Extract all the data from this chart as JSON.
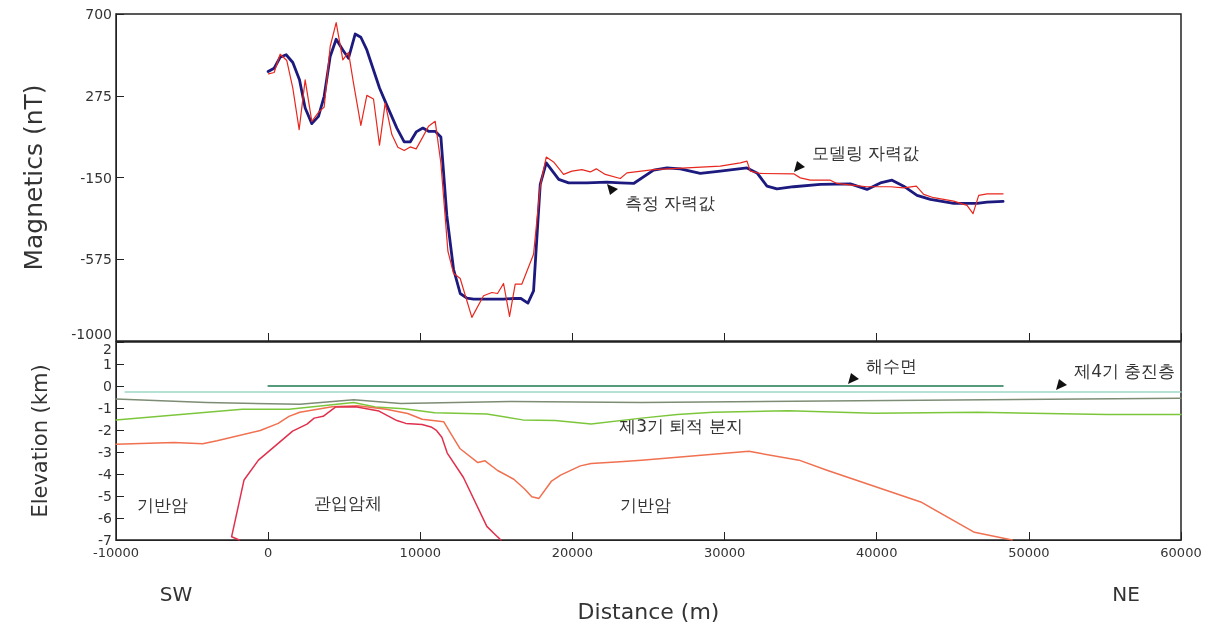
{
  "chart_data": [
    {
      "type": "line",
      "ylabel": "Magnetics (nT)",
      "xlim": [
        -10000,
        60000
      ],
      "xticks": [
        -10000,
        0,
        10000,
        20000,
        30000,
        40000,
        50000,
        60000
      ],
      "ylim": [
        -1000,
        700
      ],
      "yticks": [
        -1000,
        -575,
        -150,
        275,
        700
      ],
      "tick_labels": "y",
      "grid": false,
      "marker": "none",
      "line_style": "solid",
      "series": [
        {
          "color": "#1c1a7e",
          "x": [
            0,
            395,
            789,
            1184,
            1622,
            2060,
            2433,
            2871,
            3309,
            3682,
            4077,
            4471,
            4909,
            5282,
            5720,
            6093,
            6487,
            7320,
            7693,
            8460,
            8942,
            9337,
            9731,
            10169,
            10542,
            10980,
            11353,
            11748,
            12186,
            12624,
            13062,
            13500,
            14158,
            14815,
            15473,
            16131,
            16613,
            17073,
            17445,
            17884,
            18278,
            19100,
            19750,
            20953,
            22268,
            23144,
            24020,
            25335,
            26212,
            27089,
            28404,
            29719,
            31472,
            32130,
            32788,
            33445,
            34539,
            36294,
            38267,
            39363,
            40239,
            41006,
            41773,
            42650,
            43527,
            45060,
            46595,
            47252,
            48305
          ],
          "values": [
            401,
            418,
            475,
            488,
            448,
            358,
            211,
            130,
            168,
            272,
            479,
            569,
            513,
            470,
            596,
            579,
            513,
            315,
            246,
            107,
            35,
            35,
            87,
            107,
            90,
            90,
            61,
            -350,
            -627,
            -753,
            -777,
            -782,
            -782,
            -782,
            -782,
            -779,
            -779,
            -803,
            -739,
            -186,
            -74,
            -160,
            -178,
            -178,
            -174,
            -178,
            -181,
            -112,
            -100,
            -105,
            -129,
            -117,
            -100,
            -126,
            -195,
            -209,
            -198,
            -186,
            -183,
            -212,
            -178,
            -164,
            -195,
            -243,
            -264,
            -285,
            -285,
            -278,
            -274
          ]
        },
        {
          "color": "#e8281e",
          "x": [
            22,
            395,
            789,
            1227,
            1622,
            2038,
            2433,
            2871,
            3309,
            3682,
            4077,
            4471,
            4909,
            5282,
            5610,
            6093,
            6487,
            6925,
            7320,
            7693,
            8131,
            8526,
            8942,
            9337,
            9731,
            10169,
            10542,
            10980,
            11353,
            11813,
            12186,
            12624,
            13391,
            14158,
            14706,
            15079,
            15473,
            15867,
            16240,
            16679,
            17445,
            17884,
            18278,
            18760,
            19418,
            19966,
            20623,
            21171,
            21566,
            22158,
            23144,
            23582,
            25335,
            27527,
            29719,
            31034,
            31472,
            31692,
            32349,
            34540,
            34978,
            35636,
            36951,
            37389,
            38485,
            39362,
            40896,
            41773,
            42606,
            43088,
            43745,
            45060,
            45937,
            46331,
            46704,
            47252,
            48305
          ],
          "values": [
            389,
            396,
            491,
            458,
            315,
            99,
            358,
            142,
            189,
            216,
            531,
            655,
            462,
            500,
            341,
            121,
            277,
            258,
            18,
            237,
            73,
            7,
            -10,
            9,
            -1,
            61,
            116,
            142,
            -74,
            -532,
            -648,
            -675,
            -877,
            -765,
            -748,
            -753,
            -701,
            -872,
            -704,
            -704,
            -549,
            -195,
            -44,
            -69,
            -134,
            -117,
            -109,
            -121,
            -105,
            -134,
            -155,
            -126,
            -109,
            -100,
            -91,
            -74,
            -65,
            -117,
            -129,
            -131,
            -152,
            -164,
            -164,
            -181,
            -191,
            -198,
            -198,
            -204,
            -195,
            -238,
            -255,
            -273,
            -295,
            -338,
            -243,
            -235,
            -235
          ]
        }
      ],
      "annotations": [
        {
          "text": "측정 자력값",
          "x": 22268,
          "y": -174
        },
        {
          "text": "모델링 자력값",
          "x": 34540,
          "y": -131
        }
      ]
    },
    {
      "type": "line",
      "xlabel": "Distance (m)",
      "ylabel": "Elevation (km)",
      "xlim": [
        -10000,
        60000
      ],
      "xticks": [
        -10000,
        0,
        10000,
        20000,
        30000,
        40000,
        50000,
        60000
      ],
      "ylim": [
        -7,
        2
      ],
      "yticks": [
        -7,
        -6,
        -5,
        -4,
        -3,
        -2,
        -1,
        0,
        1,
        2
      ],
      "grid": false,
      "marker": "none",
      "line_style": "solid",
      "series": [
        {
          "color": "#1e7a50",
          "x": [
            0,
            48300
          ],
          "values": [
            0,
            0
          ]
        },
        {
          "color": "#9ed8c8",
          "x": [
            -9400,
            60000
          ],
          "values": [
            -0.27,
            -0.27
          ]
        },
        {
          "color": "#7d8c74",
          "x": [
            -10000,
            -4066,
            2080,
            5626,
            8700,
            16030,
            24540,
            60000
          ],
          "values": [
            -0.59,
            -0.75,
            -0.83,
            -0.62,
            -0.79,
            -0.7,
            -0.75,
            -0.56
          ]
        },
        {
          "color": "#7cc63c",
          "x": [
            -10000,
            -1702,
            1371,
            5626,
            7045,
            8936,
            10946,
            14373,
            16738,
            18865,
            21229,
            24540,
            26894,
            29247,
            34188,
            39835,
            46659,
            55130,
            60000
          ],
          "values": [
            -1.54,
            -1.06,
            -1.06,
            -0.75,
            -0.95,
            -1.03,
            -1.22,
            -1.27,
            -1.54,
            -1.57,
            -1.73,
            -1.46,
            -1.3,
            -1.19,
            -1.13,
            -1.24,
            -1.19,
            -1.3,
            -1.3
          ]
        },
        {
          "color": "#f07050",
          "x": [
            -10000,
            -6194,
            -4303,
            -3357,
            -520,
            662,
            1371,
            2080,
            4208,
            5863,
            7754,
            9173,
            10118,
            11537,
            12009,
            12600,
            13783,
            14255,
            15083,
            16147,
            16856,
            17329,
            17801,
            18629,
            19220,
            20520,
            21229,
            23121,
            24540,
            31600,
            34894,
            36776,
            42894,
            46424,
            48900
          ],
          "values": [
            -2.65,
            -2.57,
            -2.62,
            -2.49,
            -2.02,
            -1.7,
            -1.38,
            -1.19,
            -0.94,
            -0.9,
            -1.06,
            -1.25,
            -1.51,
            -1.62,
            -2.17,
            -2.84,
            -3.48,
            -3.4,
            -3.84,
            -4.24,
            -4.68,
            -5.03,
            -5.11,
            -4.32,
            -4.05,
            -3.63,
            -3.52,
            -3.44,
            -3.37,
            -2.97,
            -3.37,
            -3.84,
            -5.27,
            -6.65,
            -7
          ]
        },
        {
          "color": "#e0304e",
          "x": [
            -1900,
            -2400,
            -1584,
            -638,
            1608,
            2553,
            3026,
            3617,
            4444,
            5745,
            7281,
            8463,
            9054,
            10118,
            10709,
            11064,
            11418,
            11773,
            12837,
            14373,
            15083,
            15300
          ],
          "values": [
            -7,
            -6.85,
            -4.27,
            -3.37,
            -2.05,
            -1.73,
            -1.46,
            -1.38,
            -0.95,
            -0.94,
            -1.14,
            -1.57,
            -1.7,
            -1.75,
            -1.86,
            -2.02,
            -2.33,
            -3.05,
            -4.16,
            -6.38,
            -6.86,
            -7
          ]
        }
      ],
      "annotations": [
        {
          "text": "해수면",
          "x": 38100,
          "y": 0
        },
        {
          "text": "제4기 충진층",
          "x": 51800,
          "y": -0.27
        },
        "제3기 퇴적 분지",
        "기반암",
        "관입암체",
        "기반암",
        "SW",
        "NE"
      ]
    }
  ]
}
